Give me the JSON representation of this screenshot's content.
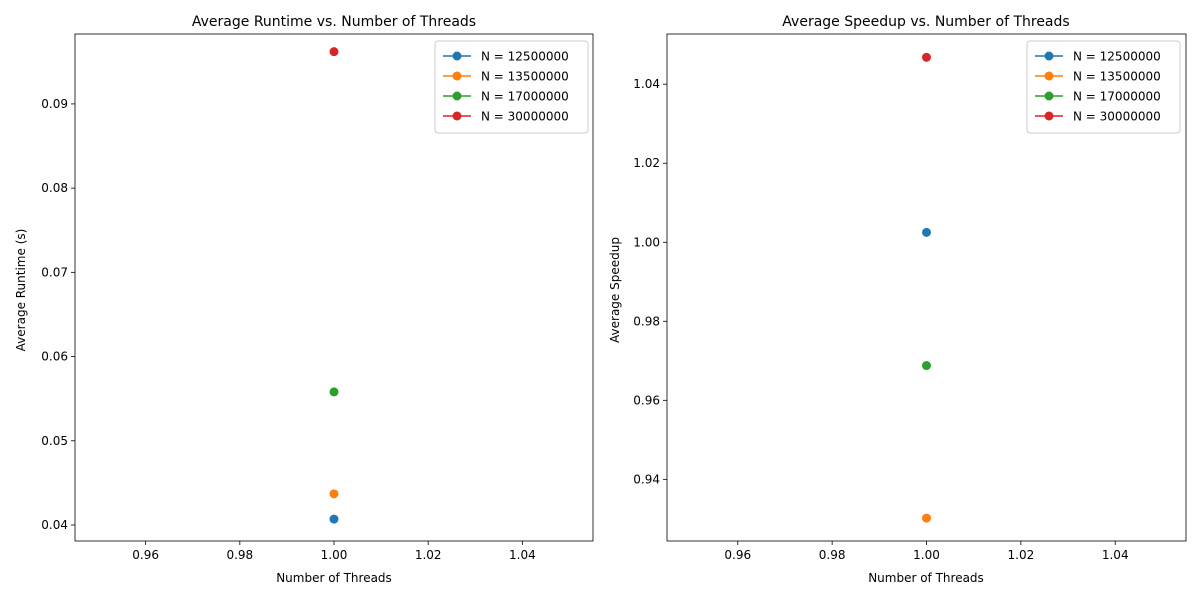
{
  "chart_data": [
    {
      "type": "scatter",
      "title": "Average Runtime vs. Number of Threads",
      "xlabel": "Number of Threads",
      "ylabel": "Average Runtime (s)",
      "xlim": [
        0.945,
        1.055
      ],
      "ylim": [
        0.0381,
        0.0983
      ],
      "xticks": [
        0.96,
        0.98,
        1.0,
        1.02,
        1.04
      ],
      "xtick_labels": [
        "0.96",
        "0.98",
        "1.00",
        "1.02",
        "1.04"
      ],
      "yticks": [
        0.04,
        0.05,
        0.06,
        0.07,
        0.08,
        0.09
      ],
      "ytick_labels": [
        "0.04",
        "0.05",
        "0.06",
        "0.07",
        "0.08",
        "0.09"
      ],
      "grid": false,
      "legend": "top-right",
      "series": [
        {
          "name": "N = 12500000",
          "color": "#1f77b4",
          "x": [
            1
          ],
          "y": [
            0.0407
          ]
        },
        {
          "name": "N = 13500000",
          "color": "#ff7f0e",
          "x": [
            1
          ],
          "y": [
            0.0437
          ]
        },
        {
          "name": "N = 17000000",
          "color": "#2ca02c",
          "x": [
            1
          ],
          "y": [
            0.0558
          ]
        },
        {
          "name": "N = 30000000",
          "color": "#d62728",
          "x": [
            1
          ],
          "y": [
            0.0962
          ]
        }
      ]
    },
    {
      "type": "scatter",
      "title": "Average Speedup vs. Number of Threads",
      "xlabel": "Number of Threads",
      "ylabel": "Average Speedup",
      "xlim": [
        0.945,
        1.055
      ],
      "ylim": [
        0.9244,
        1.0527
      ],
      "xticks": [
        0.96,
        0.98,
        1.0,
        1.02,
        1.04
      ],
      "xtick_labels": [
        "0.96",
        "0.98",
        "1.00",
        "1.02",
        "1.04"
      ],
      "yticks": [
        0.94,
        0.96,
        0.98,
        1.0,
        1.02,
        1.04
      ],
      "ytick_labels": [
        "0.94",
        "0.96",
        "0.98",
        "1.00",
        "1.02",
        "1.04"
      ],
      "grid": false,
      "legend": "top-right",
      "series": [
        {
          "name": "N = 12500000",
          "color": "#1f77b4",
          "x": [
            1
          ],
          "y": [
            1.0025
          ]
        },
        {
          "name": "N = 13500000",
          "color": "#ff7f0e",
          "x": [
            1
          ],
          "y": [
            0.9302
          ]
        },
        {
          "name": "N = 17000000",
          "color": "#2ca02c",
          "x": [
            1
          ],
          "y": [
            0.9688
          ]
        },
        {
          "name": "N = 30000000",
          "color": "#d62728",
          "x": [
            1
          ],
          "y": [
            1.0468
          ]
        }
      ]
    }
  ]
}
